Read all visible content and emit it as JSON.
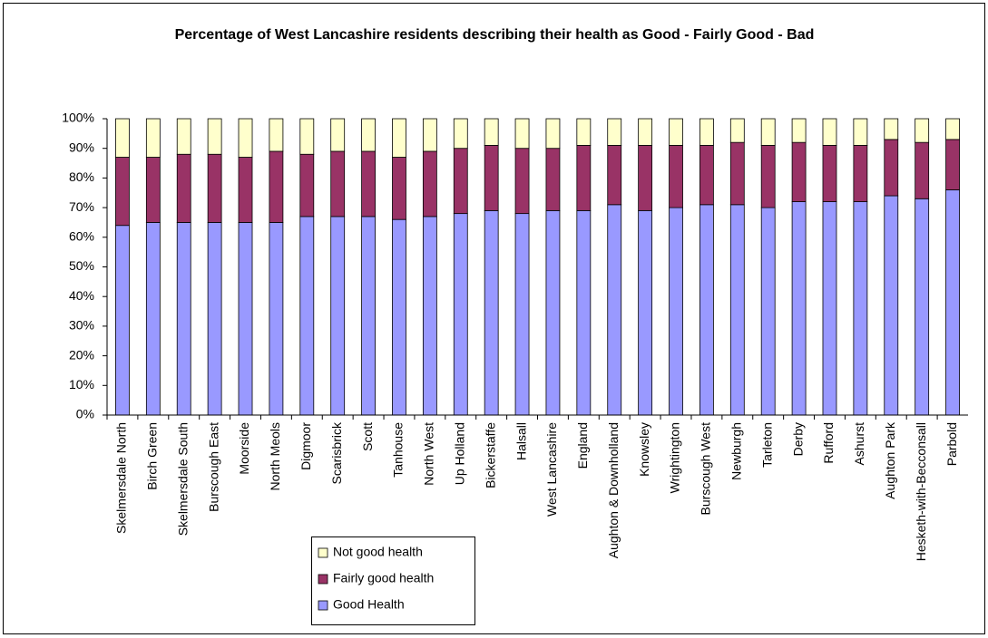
{
  "chart_data": {
    "type": "stacked_bar",
    "title": "Percentage of West Lancashire residents describing their health as Good - Fairly Good - Bad",
    "categories": [
      "Skelmersdale North",
      "Birch Green",
      "Skelmersdale South",
      "Burscough East",
      "Moorside",
      "North Meols",
      "Digmoor",
      "Scarisbrick",
      "Scott",
      "Tanhouse",
      "North West",
      "Up Holland",
      "Bickerstaffe",
      "Halsall",
      "West Lancashire",
      "England",
      "Aughton & Downholland",
      "Knowsley",
      "Wrightington",
      "Burscough West",
      "Newburgh",
      "Tarleton",
      "Derby",
      "Rufford",
      "Ashurst",
      "Aughton Park",
      "Hesketh-with-Becconsall",
      "Parbold"
    ],
    "series": [
      {
        "name": "Good Health",
        "color": "#9999ff",
        "values": [
          64,
          65,
          65,
          65,
          65,
          65,
          67,
          67,
          67,
          66,
          67,
          68,
          69,
          68,
          69,
          69,
          71,
          69,
          70,
          71,
          71,
          70,
          72,
          72,
          72,
          74,
          73,
          76
        ]
      },
      {
        "name": "Fairly good health",
        "color": "#993366",
        "values": [
          23,
          22,
          23,
          23,
          22,
          24,
          21,
          22,
          22,
          21,
          22,
          22,
          22,
          22,
          21,
          22,
          20,
          22,
          21,
          20,
          21,
          21,
          20,
          19,
          19,
          19,
          19,
          17
        ]
      },
      {
        "name": "Not good health",
        "color": "#ffffcc",
        "values": [
          13,
          13,
          12,
          12,
          13,
          11,
          12,
          11,
          11,
          13,
          11,
          10,
          9,
          10,
          10,
          9,
          9,
          9,
          9,
          9,
          8,
          9,
          8,
          9,
          9,
          7,
          8,
          7
        ]
      }
    ],
    "ylim": [
      0,
      100
    ],
    "yticks": [
      {
        "value": 0,
        "label": "0%"
      },
      {
        "value": 10,
        "label": "10%"
      },
      {
        "value": 20,
        "label": "20%"
      },
      {
        "value": 30,
        "label": "30%"
      },
      {
        "value": 40,
        "label": "40%"
      },
      {
        "value": 50,
        "label": "50%"
      },
      {
        "value": 60,
        "label": "60%"
      },
      {
        "value": 70,
        "label": "70%"
      },
      {
        "value": 80,
        "label": "80%"
      },
      {
        "value": 90,
        "label": "90%"
      },
      {
        "value": 100,
        "label": "100%"
      }
    ],
    "grid": false
  }
}
